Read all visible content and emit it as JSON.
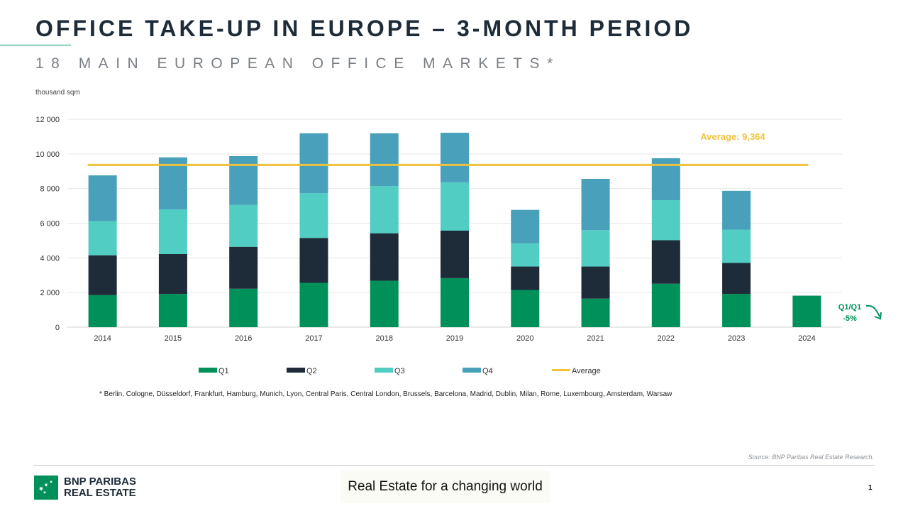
{
  "header": {
    "title": "OFFICE TAKE-UP IN EUROPE – 3-MONTH PERIOD",
    "subtitle": "18 MAIN EUROPEAN OFFICE MARKETS*"
  },
  "colors": {
    "q1": "#00915a",
    "q2": "#1e2b39",
    "q3": "#51cdc4",
    "q4": "#48a0bb",
    "average": "#f0c23b",
    "annotation": "#00915a"
  },
  "chart_data": {
    "type": "bar",
    "stacked": true,
    "ylabel": "thousand sqm",
    "ylim": [
      0,
      12000
    ],
    "yticks": [
      "0",
      "2 000",
      "4 000",
      "6 000",
      "8 000",
      "10 000",
      "12 000"
    ],
    "ytick_values": [
      0,
      2000,
      4000,
      6000,
      8000,
      10000,
      12000
    ],
    "grid": true,
    "categories": [
      "2014",
      "2015",
      "2016",
      "2017",
      "2018",
      "2019",
      "2020",
      "2021",
      "2022",
      "2023",
      "2024"
    ],
    "series": [
      {
        "name": "Q1",
        "values": [
          1850,
          1920,
          2220,
          2560,
          2680,
          2830,
          2150,
          1650,
          2510,
          1920,
          1820
        ]
      },
      {
        "name": "Q2",
        "values": [
          2300,
          2300,
          2420,
          2590,
          2740,
          2740,
          1350,
          1850,
          2510,
          1790,
          0
        ]
      },
      {
        "name": "Q3",
        "values": [
          1970,
          2580,
          2420,
          2580,
          2720,
          2790,
          1340,
          2100,
          2310,
          1920,
          0
        ]
      },
      {
        "name": "Q4",
        "values": [
          2640,
          3000,
          2810,
          3460,
          3050,
          2860,
          1930,
          2960,
          2420,
          2240,
          0
        ]
      }
    ],
    "average": {
      "name": "Average",
      "value": 9364,
      "label": "Average: 9,364"
    },
    "annotation": {
      "line1": "Q1/Q1",
      "line2": "-5%"
    },
    "legend": [
      "Q1",
      "Q2",
      "Q3",
      "Q4",
      "Average"
    ],
    "legend_position": "bottom"
  },
  "footnote": "* Berlin, Cologne, Düsseldorf, Frankfurt, Hamburg, Munich, Lyon, Central Paris, Central London, Brussels, Barcelona, Madrid, Dublin, Milan, Rome, Luxembourg, Amsterdam, Warsaw",
  "source": "Source: BNP Paribas Real Estate Research.",
  "brand": {
    "line1": "BNP PARIBAS",
    "line2": "REAL ESTATE"
  },
  "tagline": "Real Estate for a changing world",
  "page_number": "1"
}
